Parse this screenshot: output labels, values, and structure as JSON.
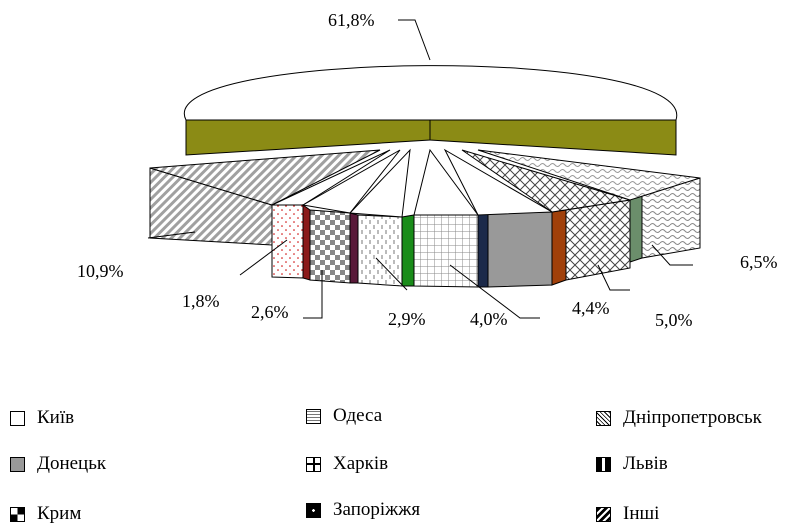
{
  "chart_data": {
    "type": "pie",
    "categories": [
      "Київ",
      "Інші",
      "Дніпропетровськ",
      "Одеса",
      "Донецьк",
      "Харків",
      "Крим",
      "Запоріжжя",
      "Львів"
    ],
    "values": [
      61.8,
      10.9,
      6.5,
      5.0,
      4.4,
      4.0,
      2.9,
      2.6,
      1.8
    ],
    "labels": [
      "61,8%",
      "10,9%",
      "6,5%",
      "5,0%",
      "4,4%",
      "4,0%",
      "2,9%",
      "2,6%",
      "1,8%"
    ],
    "legend_position": "bottom"
  },
  "legend": [
    {
      "label": "Київ",
      "pattern": "white"
    },
    {
      "label": "Одеса",
      "pattern": "wavy"
    },
    {
      "label": "Дніпропетровськ",
      "pattern": "cross"
    },
    {
      "label": "Донецьк",
      "pattern": "gray"
    },
    {
      "label": "Харків",
      "pattern": "grid"
    },
    {
      "label": "Львів",
      "pattern": "checker"
    },
    {
      "label": "Крим",
      "pattern": "bigcheck"
    },
    {
      "label": "Запоріжжя",
      "pattern": "dots"
    },
    {
      "label": "Інші",
      "pattern": "diag"
    }
  ],
  "colors": {
    "kyiv_side": "#8b8b15",
    "dnipro_side": "#6b8e6b",
    "odesa_side": "#a0400a",
    "donetsk_side": "#1c2a4a",
    "kharkiv_side": "#1a8c1a",
    "crimea_side": "#5a1a3a",
    "zaporizhzhia_side": "#8b1a1a"
  }
}
